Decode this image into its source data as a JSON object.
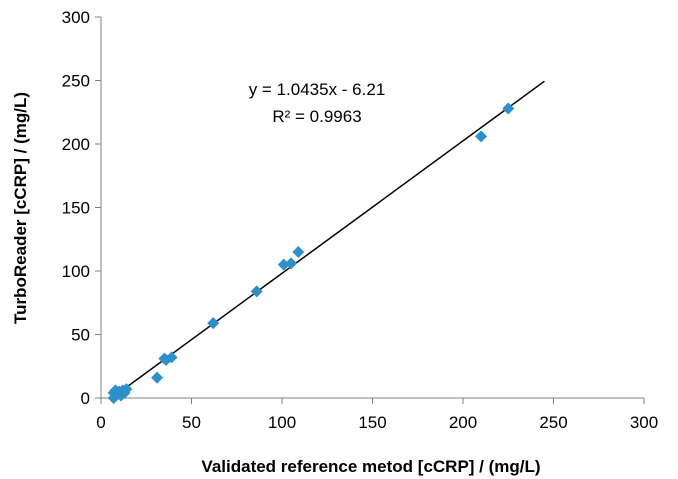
{
  "chart_data": {
    "type": "scatter",
    "xlabel": "Validated reference metod [cCRP] / (mg/L)",
    "ylabel": "TurboReader [cCRP] / (mg/L)",
    "xlim": [
      0,
      300
    ],
    "ylim": [
      0,
      300
    ],
    "x_ticks": [
      0,
      50,
      100,
      150,
      200,
      250,
      300
    ],
    "y_ticks": [
      0,
      50,
      100,
      150,
      200,
      250,
      300
    ],
    "grid": false,
    "marker": "diamond",
    "point_color": "#2E8FC9",
    "trendline": {
      "slope": 1.0435,
      "intercept": -6.21,
      "x_range": [
        6,
        245
      ],
      "equation_label": "y = 1.0435x - 6.21",
      "r2_label": "R² = 0.9963"
    },
    "points": [
      {
        "x": 7,
        "y": 0
      },
      {
        "x": 7,
        "y": 4
      },
      {
        "x": 8,
        "y": 6
      },
      {
        "x": 9,
        "y": 3
      },
      {
        "x": 10,
        "y": 5
      },
      {
        "x": 11,
        "y": 2
      },
      {
        "x": 12,
        "y": 6
      },
      {
        "x": 13,
        "y": 4
      },
      {
        "x": 14,
        "y": 7
      },
      {
        "x": 31,
        "y": 16
      },
      {
        "x": 35,
        "y": 31
      },
      {
        "x": 36,
        "y": 30
      },
      {
        "x": 39,
        "y": 32
      },
      {
        "x": 62,
        "y": 59
      },
      {
        "x": 86,
        "y": 84
      },
      {
        "x": 101,
        "y": 105
      },
      {
        "x": 105,
        "y": 106
      },
      {
        "x": 109,
        "y": 115
      },
      {
        "x": 210,
        "y": 206
      },
      {
        "x": 225,
        "y": 228
      }
    ]
  }
}
